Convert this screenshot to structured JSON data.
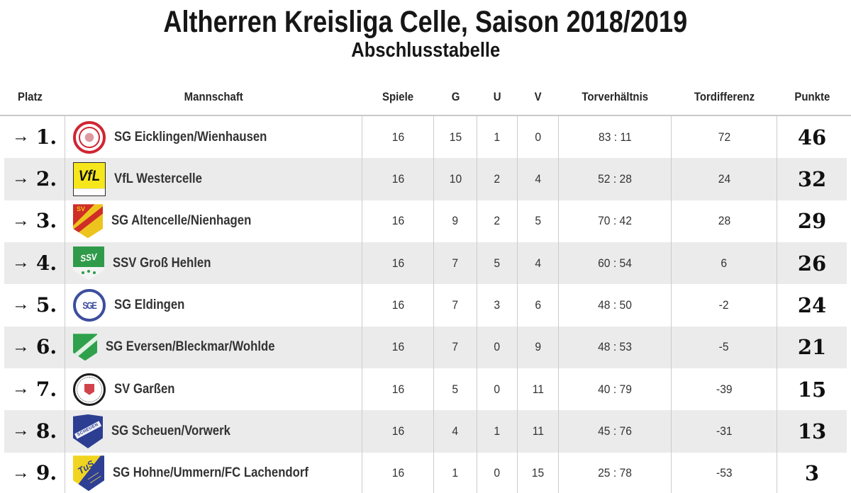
{
  "page": {
    "title": "Altherren Kreisliga Celle, Saison 2018/2019",
    "subtitle": "Abschlusstabelle"
  },
  "colors": {
    "row_alt_background": "#ebebeb",
    "column_divider": "#cccccc",
    "text": "#333333",
    "rank_points_text": "#101010"
  },
  "table": {
    "arrow_glyph": "→",
    "headers": {
      "platz": "Platz",
      "mannschaft": "Mannschaft",
      "spiele": "Spiele",
      "g": "G",
      "u": "U",
      "v": "V",
      "torverhaeltnis": "Torverhältnis",
      "tordifferenz": "Tordifferenz",
      "punkte": "Punkte"
    },
    "rows": [
      {
        "platz_display": "1.",
        "logo": "eicklingen",
        "logo_text": "",
        "team": "SG Eicklingen/Wienhausen",
        "spiele": "16",
        "g": "15",
        "u": "1",
        "v": "0",
        "torverhaeltnis": "83 : 11",
        "tordifferenz": "72",
        "punkte": "46"
      },
      {
        "platz_display": "2.",
        "logo": "westercelle",
        "logo_text": "VfL",
        "team": "VfL Westercelle",
        "spiele": "16",
        "g": "10",
        "u": "2",
        "v": "4",
        "torverhaeltnis": "52 : 28",
        "tordifferenz": "24",
        "punkte": "32"
      },
      {
        "platz_display": "3.",
        "logo": "altencelle",
        "logo_text": "SV",
        "team": "SG Altencelle/Nienhagen",
        "spiele": "16",
        "g": "9",
        "u": "2",
        "v": "5",
        "torverhaeltnis": "70 : 42",
        "tordifferenz": "28",
        "punkte": "29"
      },
      {
        "platz_display": "4.",
        "logo": "hehlen",
        "logo_text": "SSV",
        "team": "SSV Groß Hehlen",
        "spiele": "16",
        "g": "7",
        "u": "5",
        "v": "4",
        "torverhaeltnis": "60 : 54",
        "tordifferenz": "6",
        "punkte": "26"
      },
      {
        "platz_display": "5.",
        "logo": "eldingen",
        "logo_text": "SGE",
        "team": "SG Eldingen",
        "spiele": "16",
        "g": "7",
        "u": "3",
        "v": "6",
        "torverhaeltnis": "48 : 50",
        "tordifferenz": "-2",
        "punkte": "24"
      },
      {
        "platz_display": "6.",
        "logo": "eversen",
        "logo_text": "",
        "team": "SG Eversen/Bleckmar/Wohlde",
        "spiele": "16",
        "g": "7",
        "u": "0",
        "v": "9",
        "torverhaeltnis": "48 : 53",
        "tordifferenz": "-5",
        "punkte": "21"
      },
      {
        "platz_display": "7.",
        "logo": "garssen",
        "logo_text": "",
        "team": "SV Garßen",
        "spiele": "16",
        "g": "5",
        "u": "0",
        "v": "11",
        "torverhaeltnis": "40 : 79",
        "tordifferenz": "-39",
        "punkte": "15"
      },
      {
        "platz_display": "8.",
        "logo": "scheuen",
        "logo_text": "SCHEUEN",
        "team": "SG Scheuen/Vorwerk",
        "spiele": "16",
        "g": "4",
        "u": "1",
        "v": "11",
        "torverhaeltnis": "45 : 76",
        "tordifferenz": "-31",
        "punkte": "13"
      },
      {
        "platz_display": "9.",
        "logo": "hohne",
        "logo_text": "TuS",
        "team": "SG Hohne/Ummern/FC Lachendorf",
        "spiele": "16",
        "g": "1",
        "u": "0",
        "v": "15",
        "torverhaeltnis": "25 : 78",
        "tordifferenz": "-53",
        "punkte": "3"
      }
    ]
  },
  "chart_data": {
    "type": "table",
    "title": "Altherren Kreisliga Celle, Saison 2018/2019",
    "subtitle": "Abschlusstabelle",
    "columns": [
      "Platz",
      "Mannschaft",
      "Spiele",
      "G",
      "U",
      "V",
      "Torverhältnis",
      "Tordifferenz",
      "Punkte"
    ],
    "rows": [
      [
        1,
        "SG Eicklingen/Wienhausen",
        16,
        15,
        1,
        0,
        "83 : 11",
        72,
        46
      ],
      [
        2,
        "VfL Westercelle",
        16,
        10,
        2,
        4,
        "52 : 28",
        24,
        32
      ],
      [
        3,
        "SG Altencelle/Nienhagen",
        16,
        9,
        2,
        5,
        "70 : 42",
        28,
        29
      ],
      [
        4,
        "SSV Groß Hehlen",
        16,
        7,
        5,
        4,
        "60 : 54",
        6,
        26
      ],
      [
        5,
        "SG Eldingen",
        16,
        7,
        3,
        6,
        "48 : 50",
        -2,
        24
      ],
      [
        6,
        "SG Eversen/Bleckmar/Wohlde",
        16,
        7,
        0,
        9,
        "48 : 53",
        -5,
        21
      ],
      [
        7,
        "SV Garßen",
        16,
        5,
        0,
        11,
        "40 : 79",
        -39,
        15
      ],
      [
        8,
        "SG Scheuen/Vorwerk",
        16,
        4,
        1,
        11,
        "45 : 76",
        -31,
        13
      ],
      [
        9,
        "SG Hohne/Ummern/FC Lachendorf",
        16,
        1,
        0,
        15,
        "25 : 78",
        -53,
        3
      ]
    ],
    "layout": {
      "row_striping": true,
      "column_dividers": true,
      "legend": "none",
      "grid": "partial"
    }
  }
}
